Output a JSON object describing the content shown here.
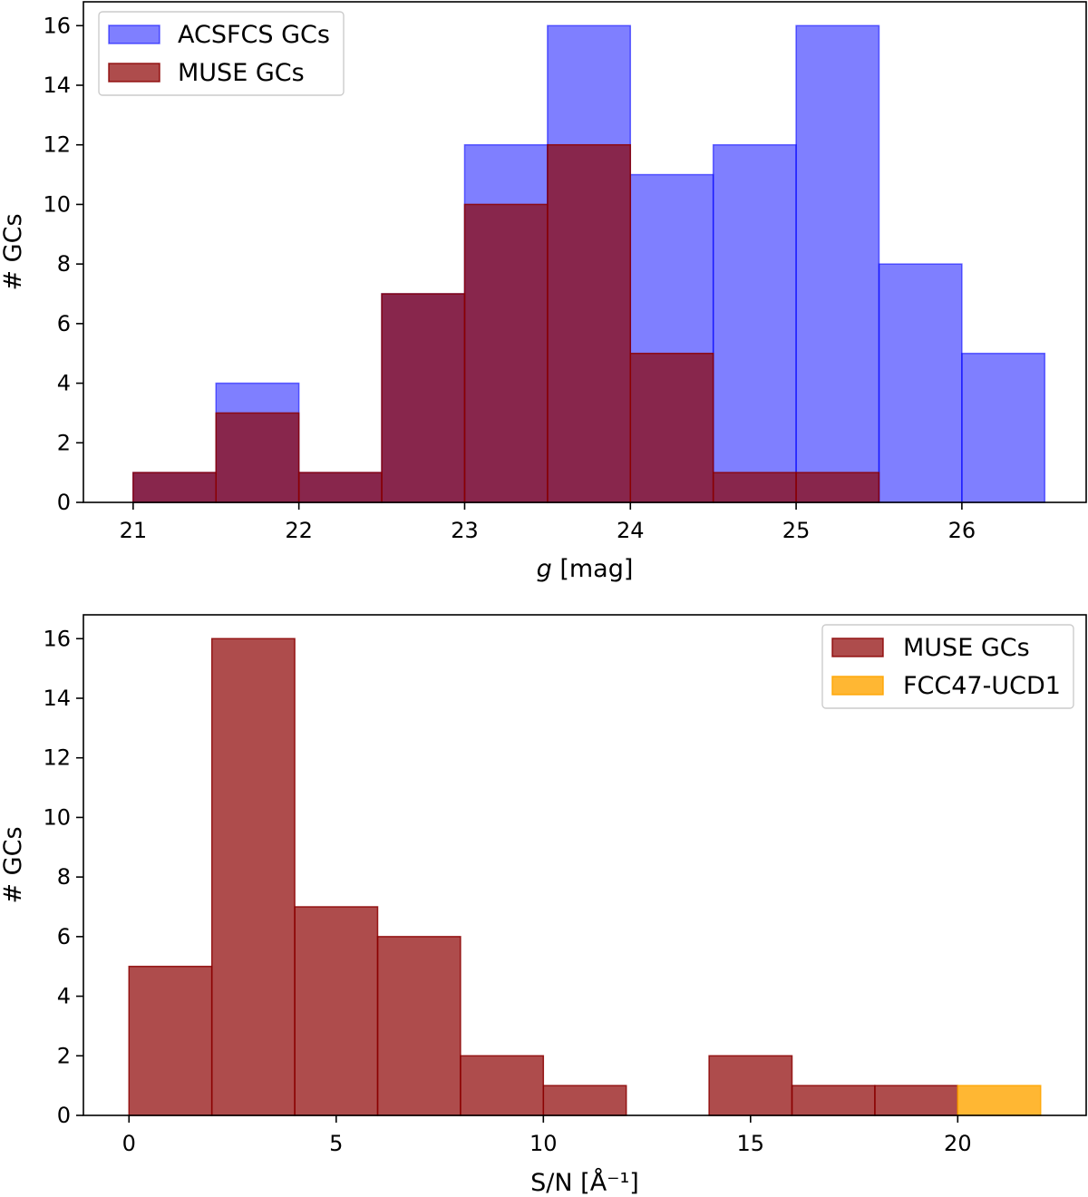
{
  "chart_data": [
    {
      "type": "histogram",
      "title": "",
      "xlabel_italic": "g",
      "xlabel_rest": " [mag]",
      "ylabel": "# GCs",
      "xlim": [
        20.7,
        26.75
      ],
      "ylim": [
        0,
        16.8
      ],
      "xticks": [
        "21",
        "22",
        "23",
        "24",
        "25",
        "26"
      ],
      "xtick_values": [
        21,
        22,
        23,
        24,
        25,
        26
      ],
      "yticks": [
        "0",
        "2",
        "4",
        "6",
        "8",
        "10",
        "12",
        "14",
        "16"
      ],
      "ytick_values": [
        0,
        2,
        4,
        6,
        8,
        10,
        12,
        14,
        16
      ],
      "bin_edges": [
        21,
        21.5,
        22,
        22.5,
        23,
        23.5,
        24,
        24.5,
        25,
        25.5,
        26,
        26.5
      ],
      "legend_position": "upper-left",
      "series": [
        {
          "name": "ACSFCS GCs",
          "values": [
            1,
            4,
            1,
            7,
            12,
            16,
            11,
            12,
            16,
            8,
            5
          ],
          "fill": "#0000ff",
          "fill_opacity": 0.5,
          "edge": "#0000ff",
          "edge_opacity": 0.55
        },
        {
          "name": "MUSE GCs",
          "values": [
            1,
            3,
            1,
            7,
            10,
            12,
            5,
            1,
            1,
            0,
            0
          ],
          "fill": "#8b0000",
          "fill_opacity": 0.7,
          "edge": "#8b0000",
          "edge_opacity": 0.85
        }
      ]
    },
    {
      "type": "histogram",
      "title": "",
      "xlabel_italic": "",
      "xlabel_rest": "S/N [Å⁻¹]",
      "ylabel": "# GCs",
      "xlim": [
        -1.1,
        23.1
      ],
      "ylim": [
        0,
        16.8
      ],
      "xticks": [
        "0",
        "5",
        "10",
        "15",
        "20"
      ],
      "xtick_values": [
        0,
        5,
        10,
        15,
        20
      ],
      "yticks": [
        "0",
        "2",
        "4",
        "6",
        "8",
        "10",
        "12",
        "14",
        "16"
      ],
      "ytick_values": [
        0,
        2,
        4,
        6,
        8,
        10,
        12,
        14,
        16
      ],
      "bin_edges": [
        0,
        2,
        4,
        6,
        8,
        10,
        12,
        14,
        16,
        18,
        20,
        22
      ],
      "legend_position": "upper-right",
      "series": [
        {
          "name": "MUSE GCs",
          "values": [
            5,
            16,
            7,
            6,
            2,
            1,
            0,
            2,
            1,
            1,
            0
          ],
          "fill": "#8b0000",
          "fill_opacity": 0.7,
          "edge": "#8b0000",
          "edge_opacity": 0.85
        },
        {
          "name": "FCC47-UCD1",
          "values": [
            0,
            0,
            0,
            0,
            0,
            0,
            0,
            0,
            0,
            0,
            1
          ],
          "fill": "#ffa500",
          "fill_opacity": 0.8,
          "edge": "#ffa500",
          "edge_opacity": 0.9
        }
      ]
    }
  ]
}
